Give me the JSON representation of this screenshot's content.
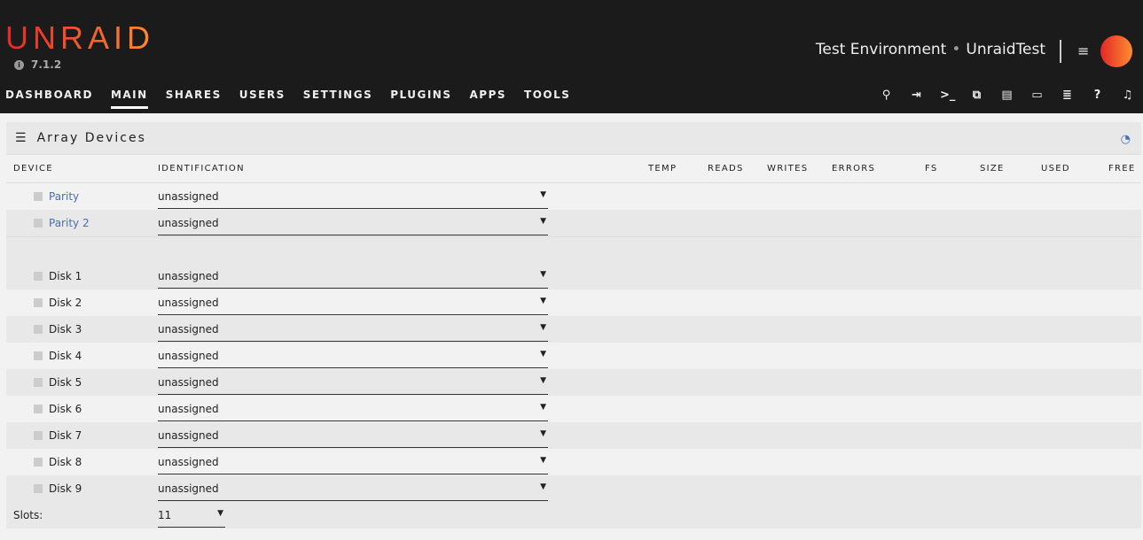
{
  "header": {
    "logo": "UNRAID",
    "version": "7.1.2",
    "server_label": "Test Environment",
    "server_name": "UnraidTest",
    "nav": [
      "DASHBOARD",
      "MAIN",
      "SHARES",
      "USERS",
      "SETTINGS",
      "PLUGINS",
      "APPS",
      "TOOLS"
    ],
    "active_nav": "MAIN",
    "icons": [
      "search-icon",
      "logout-icon",
      "terminal-icon",
      "copy-icon",
      "feedback-icon",
      "monitor-icon",
      "log-icon",
      "help-icon",
      "bell-icon"
    ]
  },
  "panel": {
    "title": "Array Devices",
    "columns": [
      "DEVICE",
      "IDENTIFICATION",
      "TEMP",
      "READS",
      "WRITES",
      "ERRORS",
      "FS",
      "SIZE",
      "USED",
      "FREE"
    ],
    "parity": [
      {
        "name": "Parity",
        "value": "unassigned"
      },
      {
        "name": "Parity 2",
        "value": "unassigned"
      }
    ],
    "disks": [
      {
        "name": "Disk 1",
        "value": "unassigned"
      },
      {
        "name": "Disk 2",
        "value": "unassigned"
      },
      {
        "name": "Disk 3",
        "value": "unassigned"
      },
      {
        "name": "Disk 4",
        "value": "unassigned"
      },
      {
        "name": "Disk 5",
        "value": "unassigned"
      },
      {
        "name": "Disk 6",
        "value": "unassigned"
      },
      {
        "name": "Disk 7",
        "value": "unassigned"
      },
      {
        "name": "Disk 8",
        "value": "unassigned"
      },
      {
        "name": "Disk 9",
        "value": "unassigned"
      }
    ],
    "slots_label": "Slots:",
    "slots_value": "11"
  },
  "colors": {
    "accent": "#486dba",
    "header_bg": "#1c1b1b",
    "brand_start": "#e22828",
    "brand_end": "#ff8c2f"
  }
}
